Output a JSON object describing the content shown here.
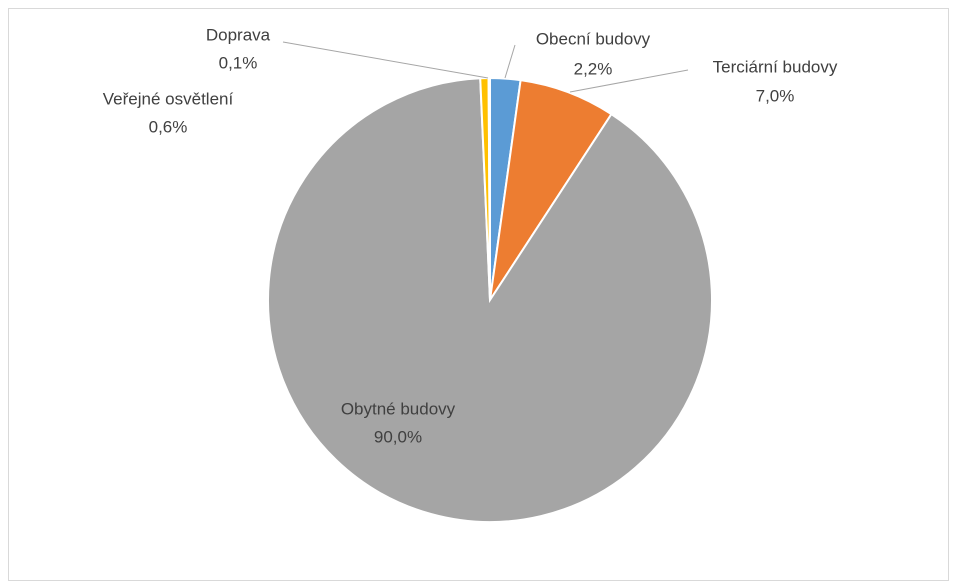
{
  "chart_data": {
    "type": "pie",
    "categories": [
      "Obecní budovy",
      "Terciární budovy",
      "Obytné budovy",
      "Veřejné osvětlení",
      "Doprava"
    ],
    "values": [
      2.2,
      7.0,
      90.0,
      0.6,
      0.1
    ],
    "value_labels": [
      "2,2%",
      "7,0%",
      "90,0%",
      "0,6%",
      "0,1%"
    ],
    "colors": [
      "#5b9bd5",
      "#ed7d31",
      "#a5a5a5",
      "#ffc000",
      "#4472c4"
    ]
  }
}
